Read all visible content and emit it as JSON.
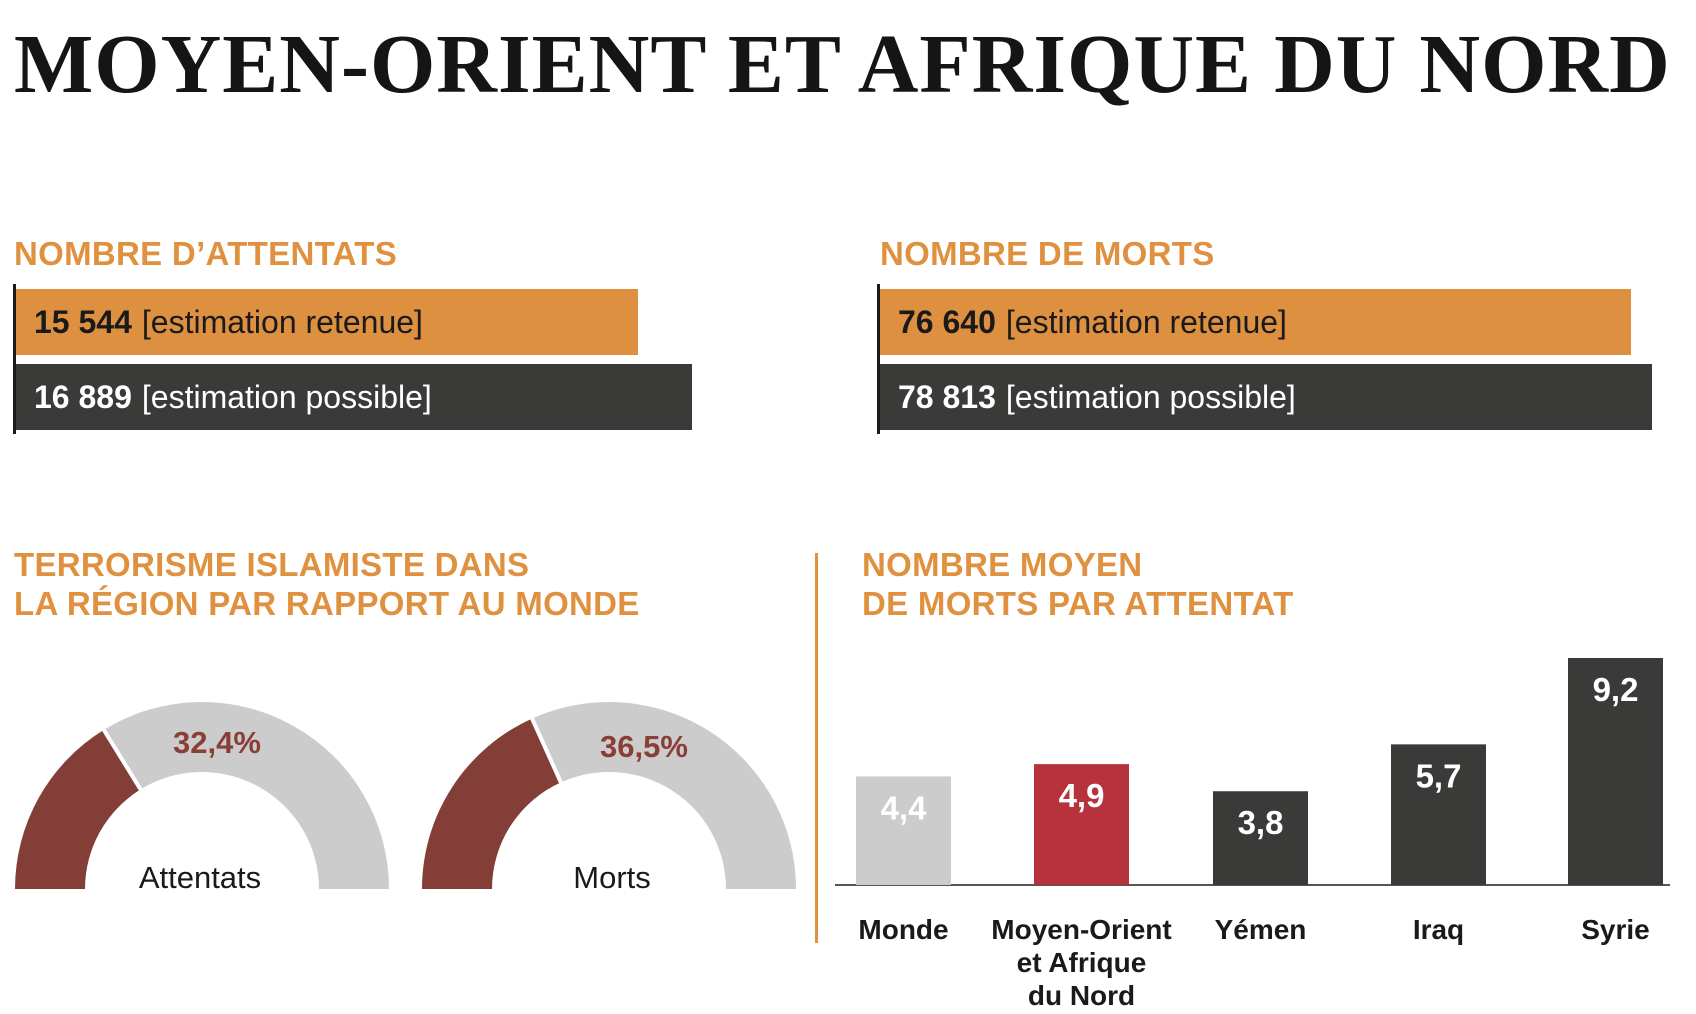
{
  "title": "MOYEN-ORIENT ET AFRIQUE DU NORD",
  "colors": {
    "accent": "#e0913f",
    "orange_bar": "#de9041",
    "dark": "#3a3a39",
    "maroon": "#833e37",
    "gray": "#cccccc",
    "red": "#b6323d",
    "pct_text": "#8a3f36"
  },
  "attentats": {
    "heading": "NOMBRE D’ATTENTATS",
    "retenue": {
      "value": "15 544",
      "label": "[estimation retenue]"
    },
    "possible": {
      "value": "16 889",
      "label": "[estimation possible]"
    }
  },
  "morts": {
    "heading": "NOMBRE DE MORTS",
    "retenue": {
      "value": "76 640",
      "label": "[estimation retenue]"
    },
    "possible": {
      "value": "78 813",
      "label": "[estimation possible]"
    }
  },
  "comparison": {
    "heading_line1": "TERRORISME ISLAMISTE DANS",
    "heading_line2": "LA RÉGION PAR RAPPORT AU MONDE"
  },
  "average": {
    "heading_line1": "NOMBRE MOYEN",
    "heading_line2": "DE MORTS PAR ATTENTAT"
  },
  "chart_data": [
    {
      "type": "bar",
      "title": "NOMBRE D’ATTENTATS",
      "orientation": "horizontal",
      "categories": [
        "estimation retenue",
        "estimation possible"
      ],
      "values": [
        15544,
        16889
      ]
    },
    {
      "type": "bar",
      "title": "NOMBRE DE MORTS",
      "orientation": "horizontal",
      "categories": [
        "estimation retenue",
        "estimation possible"
      ],
      "values": [
        76640,
        78813
      ]
    },
    {
      "type": "pie",
      "title": "TERRORISME ISLAMISTE DANS LA RÉGION PAR RAPPORT AU MONDE",
      "style": "half-donut",
      "gauges": [
        {
          "label": "Attentats",
          "percent": 32.4,
          "percent_label": "32,4%"
        },
        {
          "label": "Morts",
          "percent": 36.5,
          "percent_label": "36,5%"
        }
      ]
    },
    {
      "type": "bar",
      "title": "NOMBRE MOYEN DE MORTS PAR ATTENTAT",
      "categories": [
        "Monde",
        "Moyen-Orient et Afrique du Nord",
        "Yémen",
        "Iraq",
        "Syrie"
      ],
      "category_lines": [
        [
          "Monde"
        ],
        [
          "Moyen-Orient",
          "et Afrique",
          "du Nord"
        ],
        [
          "Yémen"
        ],
        [
          "Iraq"
        ],
        [
          "Syrie"
        ]
      ],
      "values": [
        4.4,
        4.9,
        3.8,
        5.7,
        9.2
      ],
      "value_labels": [
        "4,4",
        "4,9",
        "3,8",
        "5,7",
        "9,2"
      ],
      "bar_colors": [
        "#cccccc",
        "#b6323d",
        "#3a3a39",
        "#3a3a39",
        "#3a3a39"
      ],
      "ylim": [
        0,
        9.2
      ]
    }
  ]
}
